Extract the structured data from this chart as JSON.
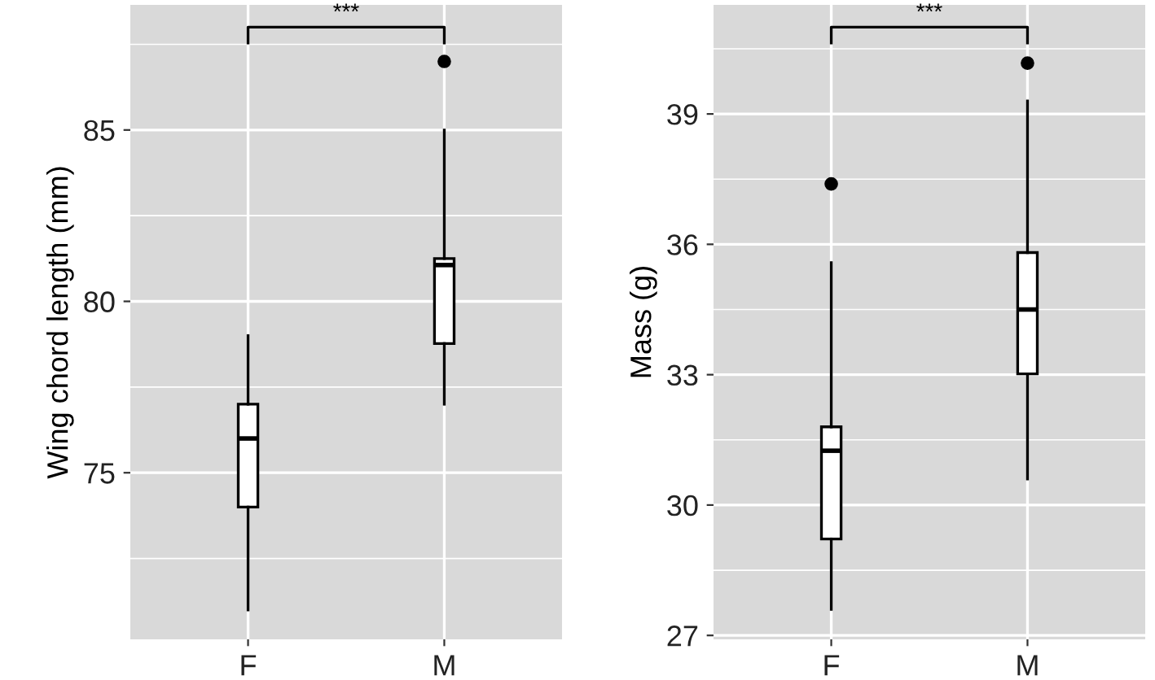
{
  "chart_data": [
    {
      "type": "box",
      "categories": [
        "F",
        "M"
      ],
      "ylabel": "Wing chord length (mm)",
      "ylim": [
        70.14,
        88.65
      ],
      "yticks": [
        75,
        80,
        85
      ],
      "grid": true,
      "color": "#ffffff",
      "annotations": [
        "***"
      ],
      "boxes": [
        {
          "low": 71.0,
          "q1": 74.0,
          "median": 76.0,
          "q3": 77.0,
          "high": 79.0
        },
        {
          "low": 77.0,
          "q1": 78.77,
          "median": 81.06,
          "q3": 81.25,
          "high": 85.0,
          "outliers": [
            87.0
          ]
        }
      ]
    },
    {
      "type": "box",
      "categories": [
        "F",
        "M"
      ],
      "ylabel": "Mass (g)",
      "ylim": [
        26.91,
        41.51
      ],
      "yticks": [
        27,
        30,
        33,
        36,
        39
      ],
      "grid": true,
      "color": "#ffffff",
      "annotations": [
        "***"
      ],
      "boxes": [
        {
          "low": 27.6,
          "q1": 29.22,
          "median": 31.25,
          "q3": 31.8,
          "high": 35.58,
          "outliers": [
            37.39
          ]
        },
        {
          "low": 30.6,
          "q1": 33.02,
          "median": 34.5,
          "q3": 35.81,
          "high": 39.3,
          "outliers": [
            40.17
          ]
        }
      ]
    }
  ]
}
